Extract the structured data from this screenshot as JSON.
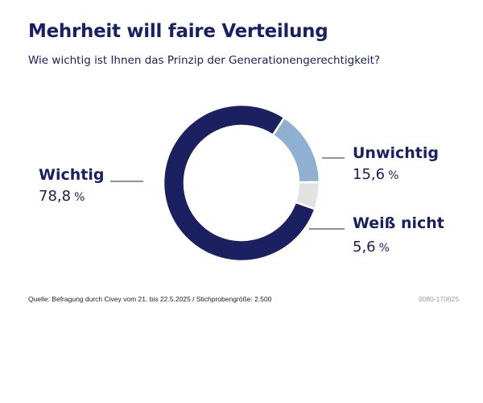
{
  "chart_data": {
    "type": "pie",
    "variant": "donut",
    "title": "Mehrheit will faire Verteilung",
    "subtitle": "Wie wichtig ist Ihnen das Prinzip der Generationengerechtigkeit?",
    "slices": [
      {
        "label": "Wichtig",
        "value": 78.8,
        "value_text": "78,8",
        "unit": "%",
        "color": "#1b2160"
      },
      {
        "label": "Unwichtig",
        "value": 15.6,
        "value_text": "15,6",
        "unit": "%",
        "color": "#8fb0d0"
      },
      {
        "label": "Weiß nicht",
        "value": 5.6,
        "value_text": "5,6",
        "unit": "%",
        "color": "#e2e2e2"
      }
    ]
  },
  "footer": {
    "source": "Quelle: Befragung durch Civey vom 21. bis 22.5.2025 / Stichprobengröße: 2.500",
    "code": "0080-170625"
  }
}
